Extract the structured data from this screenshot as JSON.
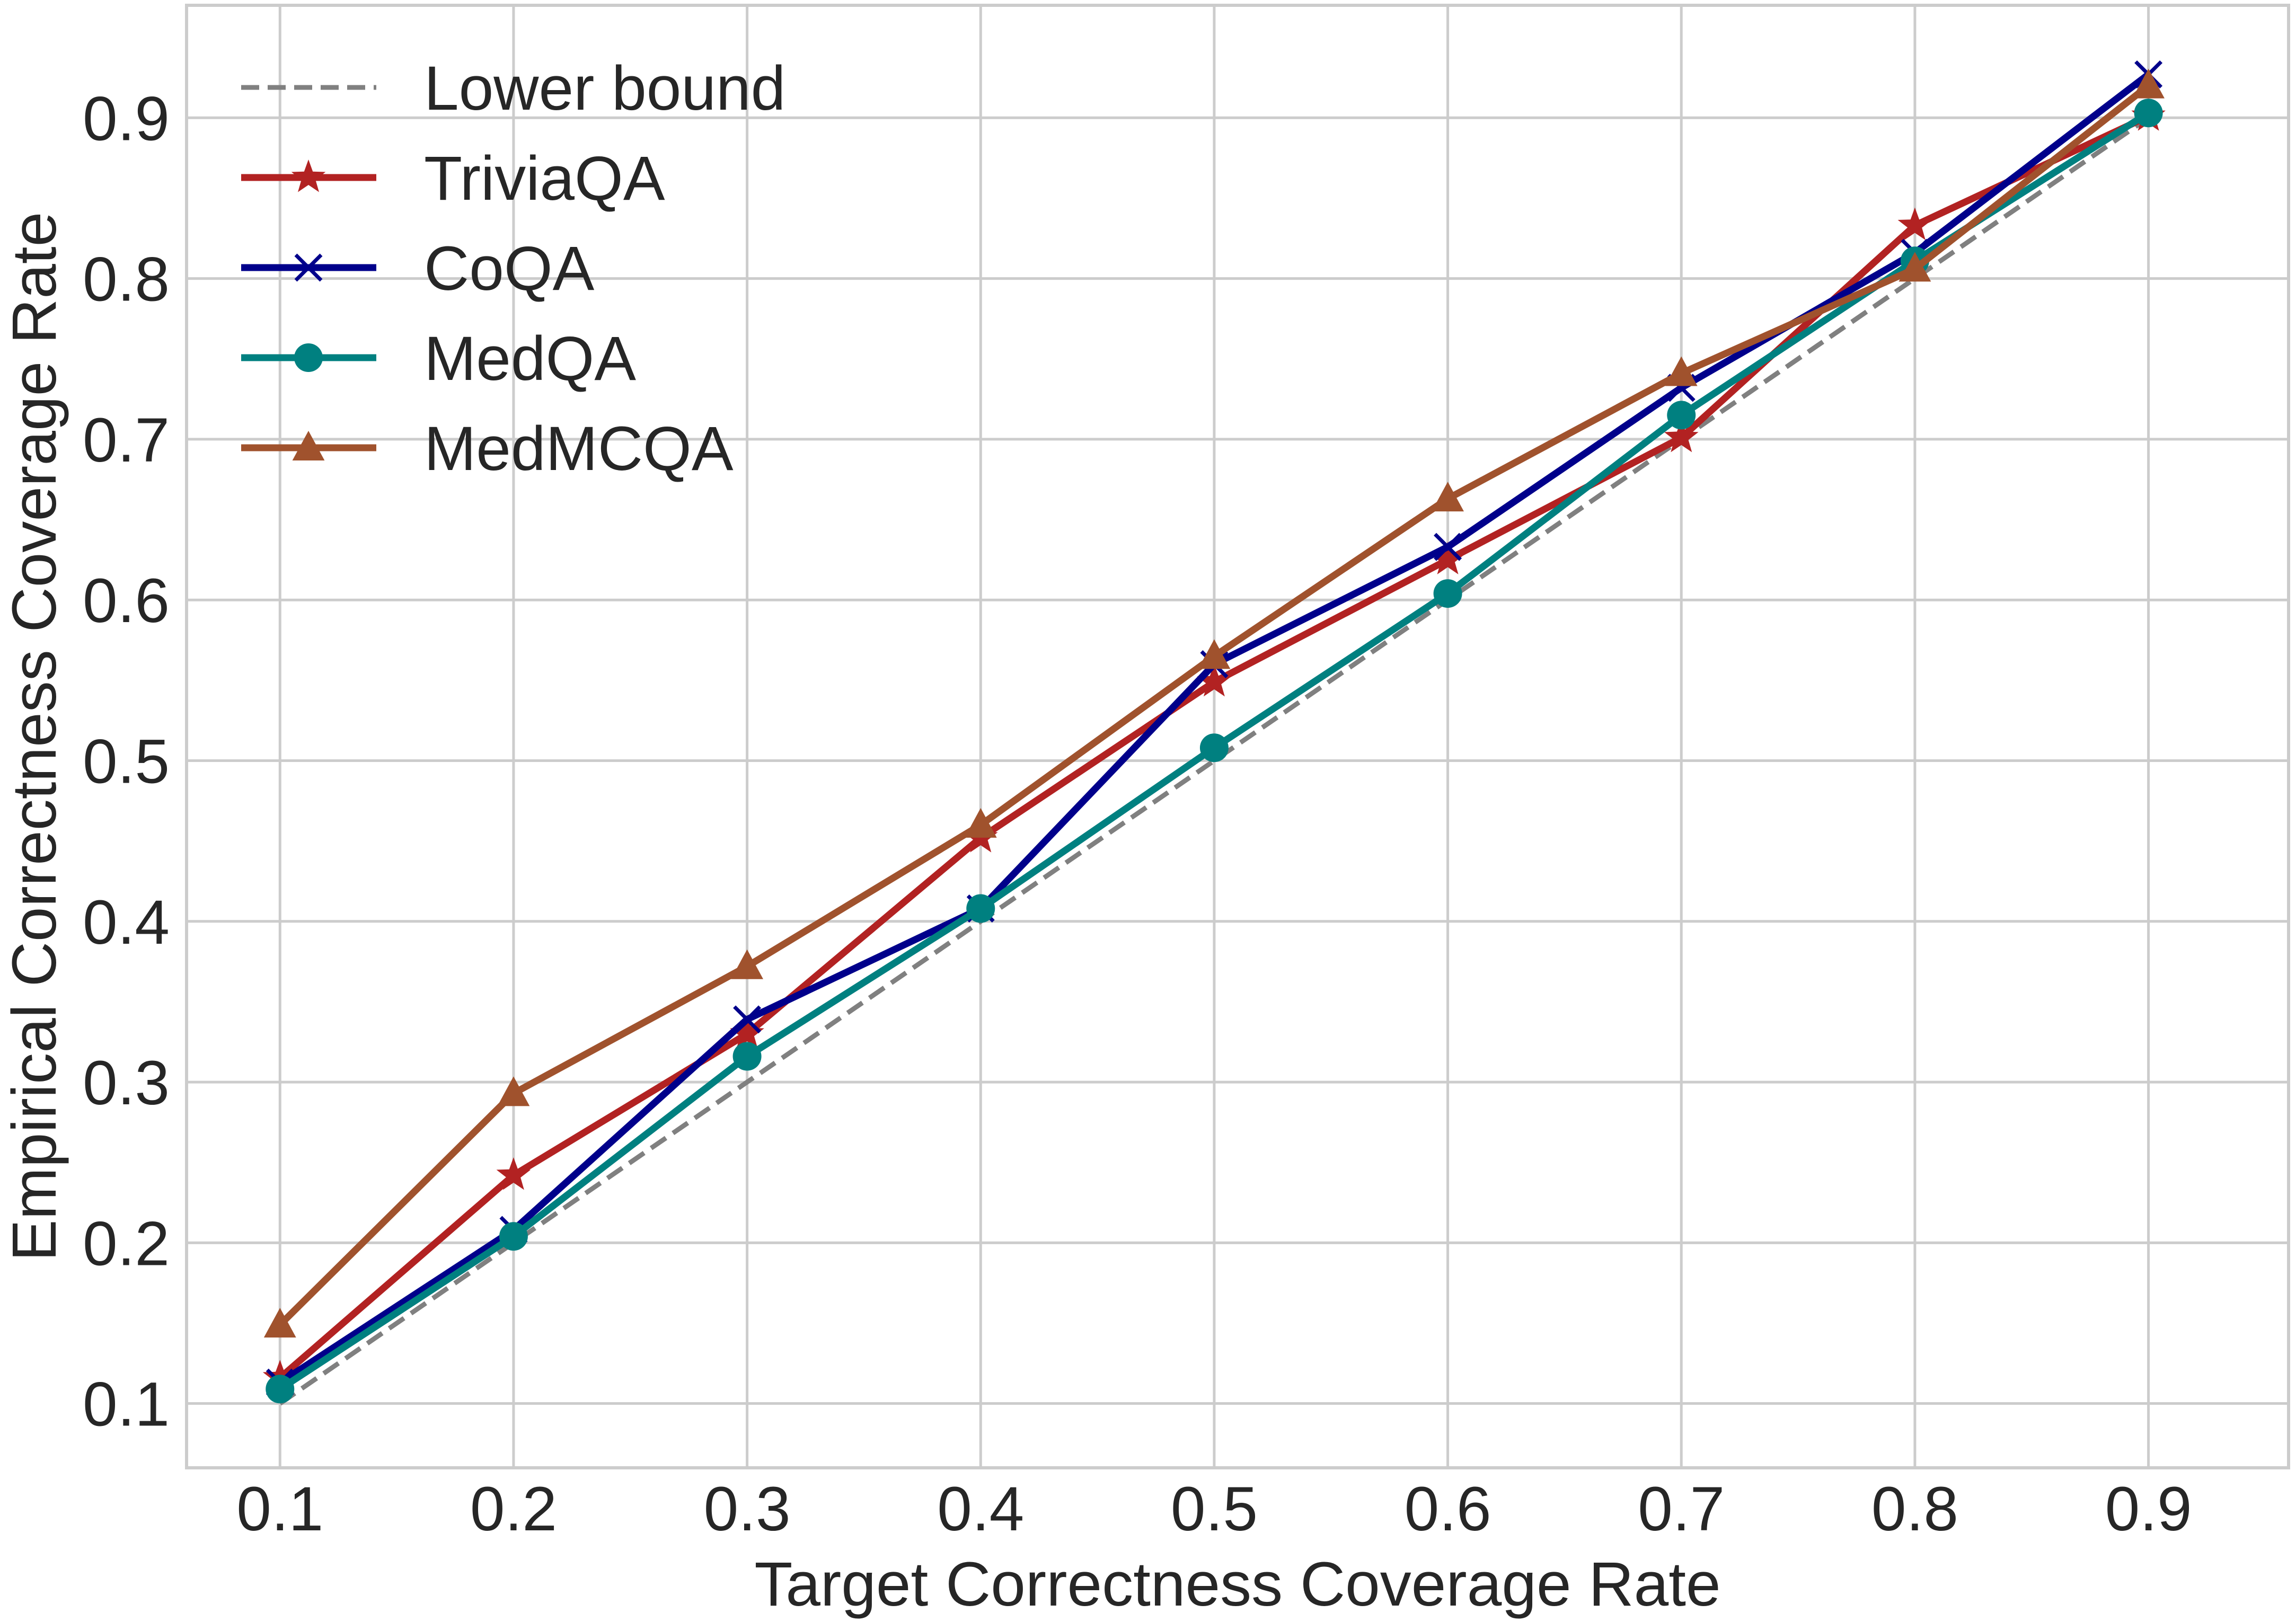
{
  "chart_data": {
    "type": "line",
    "title": "",
    "xlabel": "Target Correctness Coverage Rate",
    "ylabel": "Empirical Correctness Coverage Rate",
    "x": [
      0.1,
      0.2,
      0.3,
      0.4,
      0.5,
      0.6,
      0.7,
      0.8,
      0.9
    ],
    "xticks": [
      "0.1",
      "0.2",
      "0.3",
      "0.4",
      "0.5",
      "0.6",
      "0.7",
      "0.8",
      "0.9"
    ],
    "yticks": [
      "0.1",
      "0.2",
      "0.3",
      "0.4",
      "0.5",
      "0.6",
      "0.7",
      "0.8",
      "0.9"
    ],
    "xlim": [
      0.06,
      0.96
    ],
    "ylim": [
      0.06,
      0.97
    ],
    "grid": true,
    "legend_position": "top-left",
    "series": [
      {
        "name": "Lower bound",
        "values": [
          0.1,
          0.2,
          0.3,
          0.4,
          0.5,
          0.6,
          0.7,
          0.8,
          0.9
        ],
        "color": "#808080",
        "style": "dashed",
        "marker": "none"
      },
      {
        "name": "TriviaQA",
        "values": [
          0.116,
          0.242,
          0.33,
          0.452,
          0.549,
          0.625,
          0.701,
          0.833,
          0.901
        ],
        "color": "#b22222",
        "style": "solid",
        "marker": "star"
      },
      {
        "name": "CoQA",
        "values": [
          0.113,
          0.208,
          0.339,
          0.408,
          0.56,
          0.633,
          0.732,
          0.816,
          0.927
        ],
        "color": "#00008b",
        "style": "solid",
        "marker": "x"
      },
      {
        "name": "MedQA",
        "values": [
          0.109,
          0.204,
          0.316,
          0.408,
          0.508,
          0.604,
          0.715,
          0.811,
          0.903
        ],
        "color": "#008080",
        "style": "solid",
        "marker": "circle"
      },
      {
        "name": "MedMCQA",
        "values": [
          0.149,
          0.293,
          0.372,
          0.46,
          0.565,
          0.663,
          0.741,
          0.806,
          0.92
        ],
        "color": "#a0522d",
        "style": "solid",
        "marker": "triangle"
      }
    ]
  }
}
